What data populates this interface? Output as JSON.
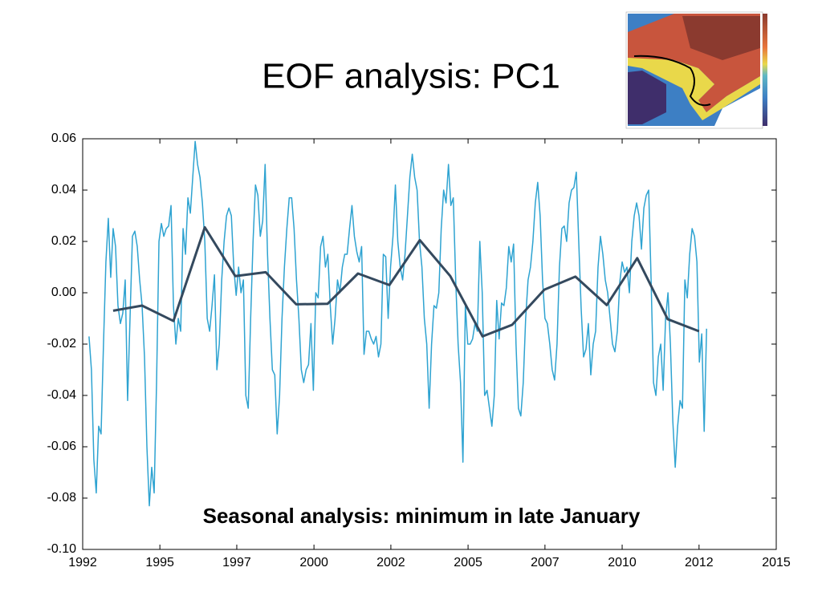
{
  "title": "EOF analysis: PC1",
  "chart_data": {
    "type": "line",
    "annotation": "Seasonal analysis:  minimum in late January",
    "xlim": [
      1992,
      2015
    ],
    "xticks": [
      {
        "value": 1992,
        "label": "1992"
      },
      {
        "value": 1994.56,
        "label": "1995"
      },
      {
        "value": 1997.11,
        "label": "1997"
      },
      {
        "value": 1999.67,
        "label": "2000"
      },
      {
        "value": 2002.22,
        "label": "2002"
      },
      {
        "value": 2004.78,
        "label": "2005"
      },
      {
        "value": 2007.33,
        "label": "2007"
      },
      {
        "value": 2009.89,
        "label": "2010"
      },
      {
        "value": 2012.44,
        "label": "2012"
      },
      {
        "value": 2015,
        "label": "2015"
      }
    ],
    "ylim": [
      -0.1,
      0.06
    ],
    "yticks": [
      0.06,
      0.04,
      0.02,
      {
        "value": 0,
        "label": "0.00"
      },
      -0.02,
      -0.04,
      -0.06,
      -0.08,
      {
        "value": -0.1,
        "label": "-0.10"
      }
    ],
    "grid": false,
    "series": [
      {
        "color": "#2ea3d1",
        "width": 1.5,
        "x": [
          1992.21,
          1992.29,
          1992.37,
          1992.45,
          1992.53,
          1992.61,
          1992.69,
          1992.77,
          1992.85,
          1992.93,
          1993.01,
          1993.09,
          1993.17,
          1993.25,
          1993.33,
          1993.41,
          1993.49,
          1993.57,
          1993.65,
          1993.73,
          1993.81,
          1993.89,
          1993.97,
          1994.05,
          1994.13,
          1994.21,
          1994.29,
          1994.37,
          1994.45,
          1994.53,
          1994.61,
          1994.69,
          1994.77,
          1994.85,
          1994.93,
          1995.01,
          1995.09,
          1995.17,
          1995.25,
          1995.33,
          1995.41,
          1995.49,
          1995.57,
          1995.65,
          1995.73,
          1995.81,
          1995.89,
          1995.97,
          1996.05,
          1996.13,
          1996.21,
          1996.29,
          1996.37,
          1996.45,
          1996.53,
          1996.61,
          1996.69,
          1996.77,
          1996.85,
          1996.93,
          1997.01,
          1997.09,
          1997.17,
          1997.25,
          1997.33,
          1997.41,
          1997.49,
          1997.57,
          1997.65,
          1997.73,
          1997.81,
          1997.89,
          1997.97,
          1998.05,
          1998.13,
          1998.21,
          1998.29,
          1998.37,
          1998.45,
          1998.53,
          1998.61,
          1998.69,
          1998.77,
          1998.85,
          1998.93,
          1999.01,
          1999.09,
          1999.17,
          1999.25,
          1999.33,
          1999.41,
          1999.49,
          1999.57,
          1999.65,
          1999.73,
          1999.81,
          1999.89,
          1999.97,
          2000.05,
          2000.13,
          2000.21,
          2000.29,
          2000.37,
          2000.45,
          2000.53,
          2000.61,
          2000.69,
          2000.77,
          2000.85,
          2000.93,
          2001.01,
          2001.09,
          2001.17,
          2001.25,
          2001.33,
          2001.41,
          2001.49,
          2001.57,
          2001.65,
          2001.73,
          2001.81,
          2001.89,
          2001.97,
          2002.05,
          2002.13,
          2002.21,
          2002.29,
          2002.37,
          2002.45,
          2002.53,
          2002.61,
          2002.69,
          2002.77,
          2002.85,
          2002.93,
          2003.01,
          2003.09,
          2003.17,
          2003.25,
          2003.33,
          2003.41,
          2003.49,
          2003.57,
          2003.65,
          2003.73,
          2003.81,
          2003.89,
          2003.97,
          2004.05,
          2004.13,
          2004.21,
          2004.29,
          2004.37,
          2004.45,
          2004.53,
          2004.61,
          2004.69,
          2004.77,
          2004.85,
          2004.93,
          2005.01,
          2005.09,
          2005.17,
          2005.25,
          2005.33,
          2005.41,
          2005.49,
          2005.57,
          2005.65,
          2005.73,
          2005.81,
          2005.89,
          2005.97,
          2006.05,
          2006.13,
          2006.21,
          2006.29,
          2006.37,
          2006.45,
          2006.53,
          2006.61,
          2006.69,
          2006.77,
          2006.85,
          2006.93,
          2007.01,
          2007.09,
          2007.17,
          2007.25,
          2007.33,
          2007.41,
          2007.49,
          2007.57,
          2007.65,
          2007.73,
          2007.81,
          2007.89,
          2007.97,
          2008.05,
          2008.13,
          2008.21,
          2008.29,
          2008.37,
          2008.45,
          2008.53,
          2008.61,
          2008.69,
          2008.77,
          2008.85,
          2008.93,
          2009.01,
          2009.09,
          2009.17,
          2009.25,
          2009.33,
          2009.41,
          2009.49,
          2009.57,
          2009.65,
          2009.73,
          2009.81,
          2009.89,
          2009.97,
          2010.05,
          2010.13,
          2010.21,
          2010.29,
          2010.37,
          2010.45,
          2010.53,
          2010.61,
          2010.69,
          2010.77,
          2010.85,
          2010.93,
          2011.01,
          2011.09,
          2011.17,
          2011.25,
          2011.33,
          2011.41,
          2011.49,
          2011.57,
          2011.65,
          2011.73,
          2011.81,
          2011.89,
          2011.97,
          2012.05,
          2012.13,
          2012.21,
          2012.29,
          2012.37,
          2012.45,
          2012.53,
          2012.61,
          2012.69
        ],
        "values": [
          -0.017,
          -0.03,
          -0.065,
          -0.078,
          -0.052,
          -0.055,
          -0.02,
          0.012,
          0.029,
          0.006,
          0.025,
          0.018,
          -0.005,
          -0.012,
          -0.008,
          0.005,
          -0.042,
          -0.01,
          0.022,
          0.024,
          0.018,
          0.005,
          -0.005,
          -0.025,
          -0.06,
          -0.083,
          -0.068,
          -0.078,
          -0.035,
          0.02,
          0.027,
          0.022,
          0.025,
          0.026,
          0.034,
          -0.005,
          -0.02,
          -0.01,
          -0.015,
          0.025,
          0.015,
          0.037,
          0.031,
          0.045,
          0.059,
          0.05,
          0.045,
          0.035,
          0.02,
          -0.01,
          -0.015,
          -0.005,
          0.007,
          -0.03,
          -0.02,
          0.005,
          0.02,
          0.03,
          0.033,
          0.03,
          0.01,
          -0.001,
          0.01,
          0.0,
          0.005,
          -0.04,
          -0.045,
          -0.01,
          0.02,
          0.042,
          0.038,
          0.022,
          0.028,
          0.05,
          0.015,
          -0.01,
          -0.03,
          -0.032,
          -0.055,
          -0.04,
          -0.01,
          0.01,
          0.025,
          0.037,
          0.037,
          0.025,
          0.005,
          -0.01,
          -0.03,
          -0.035,
          -0.03,
          -0.028,
          -0.012,
          -0.038,
          0.0,
          -0.002,
          0.018,
          0.022,
          0.01,
          0.015,
          -0.005,
          -0.02,
          -0.01,
          0.005,
          0.0,
          0.01,
          0.015,
          0.015,
          0.025,
          0.034,
          0.022,
          0.016,
          0.012,
          0.018,
          -0.024,
          -0.015,
          -0.015,
          -0.018,
          -0.02,
          -0.017,
          -0.025,
          -0.02,
          0.015,
          0.014,
          -0.01,
          0.01,
          0.022,
          0.042,
          0.02,
          0.01,
          0.005,
          0.015,
          0.03,
          0.045,
          0.054,
          0.045,
          0.04,
          0.02,
          0.01,
          -0.01,
          -0.02,
          -0.045,
          -0.02,
          -0.005,
          -0.006,
          0.0,
          0.025,
          0.04,
          0.035,
          0.05,
          0.034,
          0.037,
          0.005,
          -0.02,
          -0.035,
          -0.066,
          -0.005,
          -0.02,
          -0.02,
          -0.018,
          -0.012,
          -0.015,
          0.02,
          0.0,
          -0.04,
          -0.038,
          -0.045,
          -0.052,
          -0.04,
          -0.003,
          -0.018,
          -0.004,
          -0.005,
          0.002,
          0.018,
          0.012,
          0.019,
          -0.02,
          -0.045,
          -0.048,
          -0.035,
          -0.01,
          0.005,
          0.01,
          0.02,
          0.035,
          0.043,
          0.03,
          0.005,
          -0.01,
          -0.012,
          -0.02,
          -0.03,
          -0.034,
          -0.02,
          0.01,
          0.025,
          0.026,
          0.02,
          0.035,
          0.04,
          0.041,
          0.047,
          0.02,
          -0.006,
          -0.025,
          -0.022,
          -0.012,
          -0.032,
          -0.02,
          -0.015,
          0.01,
          0.022,
          0.015,
          0.005,
          0.0,
          -0.01,
          -0.02,
          -0.023,
          -0.015,
          0.004,
          0.012,
          0.008,
          0.01,
          0.0,
          0.02,
          0.03,
          0.035,
          0.03,
          0.017,
          0.033,
          0.038,
          0.04,
          0.005,
          -0.035,
          -0.04,
          -0.025,
          -0.02,
          -0.038,
          -0.01,
          0.0,
          -0.02,
          -0.05,
          -0.068,
          -0.052,
          -0.042,
          -0.045,
          0.005,
          -0.002,
          0.015,
          0.025,
          0.022,
          0.012,
          -0.027,
          -0.016,
          -0.054,
          -0.014
        ]
      },
      {
        "color": "#34495e",
        "width": 3,
        "x": [
          1993.01,
          1993.97,
          1995.01,
          1996.05,
          1997.06,
          1998.07,
          1999.08,
          2000.12,
          2001.13,
          2002.17,
          2003.18,
          2004.19,
          2005.26,
          2006.24,
          2007.31,
          2008.34,
          2009.38,
          2010.39,
          2011.4,
          2012.44
        ],
        "values": [
          -0.007,
          -0.005,
          -0.011,
          0.0255,
          0.0065,
          0.008,
          -0.0045,
          -0.0043,
          0.0075,
          0.003,
          0.0205,
          0.0065,
          -0.017,
          -0.0125,
          0.0012,
          0.0063,
          -0.0048,
          0.0135,
          -0.0103,
          -0.015
        ]
      }
    ]
  }
}
